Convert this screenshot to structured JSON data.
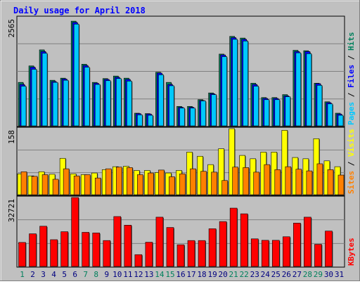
{
  "chart_data": [
    {
      "type": "bar",
      "title": "Daily usage for April 2018",
      "categories": [
        "1",
        "2",
        "3",
        "4",
        "5",
        "6",
        "7",
        "8",
        "9",
        "10",
        "11",
        "12",
        "13",
        "14",
        "15",
        "16",
        "17",
        "18",
        "19",
        "20",
        "21",
        "22",
        "23",
        "24",
        "25",
        "26",
        "27",
        "28",
        "29",
        "30",
        "31"
      ],
      "weekend_days": [
        "1",
        "7",
        "8",
        "14",
        "15",
        "21",
        "22",
        "28",
        "29"
      ],
      "ylabel": "2565",
      "ylim": [
        0,
        2565
      ],
      "side_label_parts": [
        "Pages",
        "Files",
        "Hits"
      ],
      "side_label_separator": " / ",
      "series": [
        {
          "name": "Hits",
          "color": "#00805c",
          "values": [
            1030,
            1420,
            1800,
            1080,
            1130,
            2480,
            1460,
            1030,
            1120,
            1180,
            1130,
            300,
            290,
            1270,
            1030,
            460,
            460,
            620,
            780,
            1700,
            2120,
            2080,
            1010,
            670,
            670,
            740,
            1790,
            1780,
            1010,
            570,
            300
          ]
        },
        {
          "name": "Files",
          "color": "#0000ff",
          "values": [
            980,
            1390,
            1760,
            1050,
            1110,
            2450,
            1430,
            1010,
            1100,
            1150,
            1100,
            290,
            280,
            1250,
            980,
            440,
            440,
            600,
            760,
            1680,
            2090,
            2050,
            980,
            650,
            650,
            710,
            1760,
            1760,
            1000,
            550,
            280
          ]
        },
        {
          "name": "Pages",
          "color": "#00c8ff",
          "values": [
            940,
            1340,
            1720,
            1030,
            1080,
            2410,
            1390,
            980,
            1070,
            1120,
            1060,
            260,
            250,
            1210,
            950,
            420,
            420,
            590,
            740,
            1640,
            2050,
            2010,
            940,
            620,
            620,
            690,
            1730,
            1710,
            960,
            520,
            250
          ]
        }
      ]
    },
    {
      "type": "bar",
      "ylabel": "158",
      "ylim": [
        0,
        158
      ],
      "side_label_parts": [
        "Sites",
        "Visits"
      ],
      "side_label_separator": " / ",
      "series": [
        {
          "name": "Visits",
          "color": "#ffff00",
          "values": [
            50,
            45,
            55,
            49,
            87,
            50,
            48,
            52,
            60,
            67,
            68,
            58,
            58,
            53,
            52,
            58,
            102,
            92,
            72,
            110,
            158,
            94,
            86,
            102,
            102,
            154,
            89,
            86,
            134,
            81,
            67
          ]
        },
        {
          "name": "Sites",
          "color": "#ff8000",
          "values": [
            55,
            44,
            48,
            37,
            62,
            45,
            48,
            40,
            62,
            66,
            65,
            48,
            52,
            59,
            43,
            50,
            62,
            56,
            54,
            34,
            66,
            65,
            54,
            72,
            60,
            67,
            61,
            57,
            74,
            60,
            47
          ]
        }
      ]
    },
    {
      "type": "bar",
      "ylabel": "32721",
      "ylim": [
        0,
        32721
      ],
      "side_label_parts": [
        "KBytes"
      ],
      "series": [
        {
          "name": "KBytes",
          "color": "#ff0000",
          "values": [
            11400,
            15500,
            19100,
            12700,
            16500,
            32721,
            16200,
            15900,
            12300,
            23700,
            19600,
            5600,
            11500,
            23400,
            18500,
            10300,
            12300,
            12300,
            17900,
            21300,
            27700,
            25000,
            13100,
            12400,
            12400,
            14100,
            20600,
            23400,
            10500,
            16800,
            0
          ]
        }
      ]
    }
  ],
  "colors": {
    "page_background": "#c0c0c0",
    "plot_background": "#c0c0c0",
    "grid": "#808080",
    "title": "#0000ff",
    "weekday_label": "#000080",
    "weekend_label": "#00805c",
    "bar_shadow": "#006070"
  }
}
